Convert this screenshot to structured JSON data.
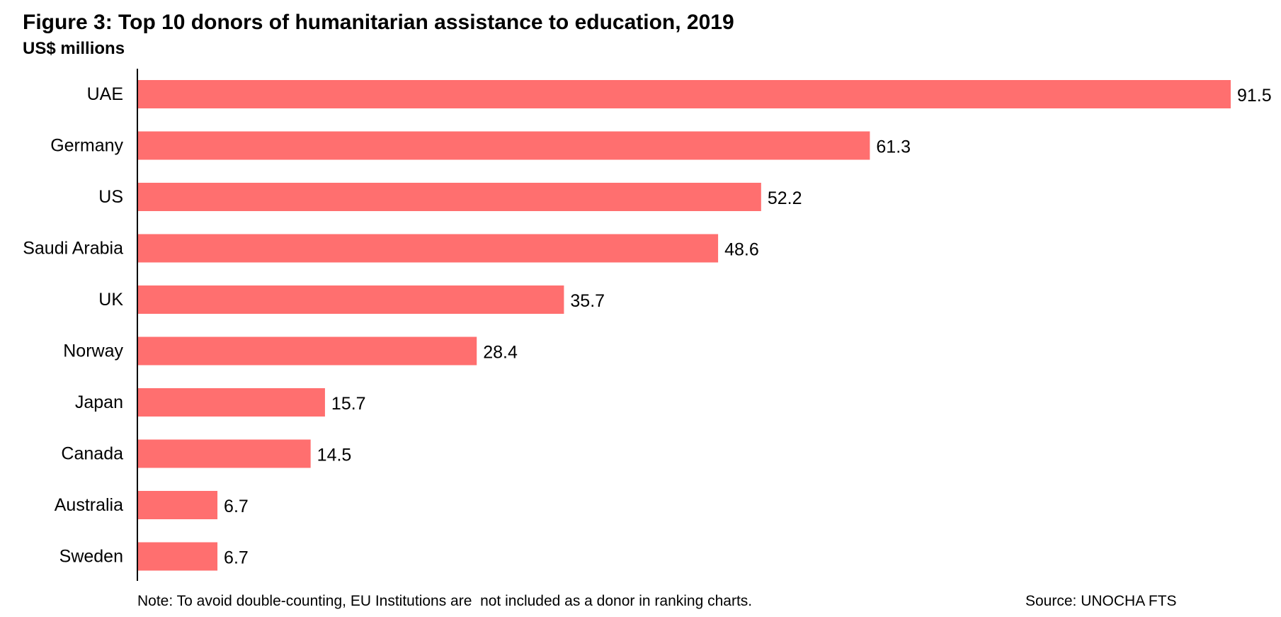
{
  "header": {
    "title": "Figure 3: Top 10 donors of humanitarian assistance to education, 2019",
    "subtitle": "US$ millions"
  },
  "chart_data": {
    "type": "bar",
    "orientation": "horizontal",
    "title": "Figure 3: Top 10 donors of humanitarian assistance to education, 2019",
    "subtitle": "US$ millions",
    "categories": [
      "UAE",
      "Germany",
      "US",
      "Saudi Arabia",
      "UK",
      "Norway",
      "Japan",
      "Canada",
      "Australia",
      "Sweden"
    ],
    "values": [
      91.5,
      61.3,
      52.2,
      48.6,
      35.7,
      28.4,
      15.7,
      14.5,
      6.7,
      6.7
    ],
    "value_labels": [
      "91.5",
      "61.3",
      "52.2",
      "48.6",
      "35.7",
      "28.4",
      "15.7",
      "14.5",
      "6.7",
      "6.7"
    ],
    "xlim": [
      0,
      91.5
    ],
    "grid": false,
    "bar_color": "#ff6f6f"
  },
  "footer": {
    "note": "Note: To avoid double-counting, EU Institutions are  not included as a donor in ranking charts.",
    "source": "Source: UNOCHA FTS"
  }
}
